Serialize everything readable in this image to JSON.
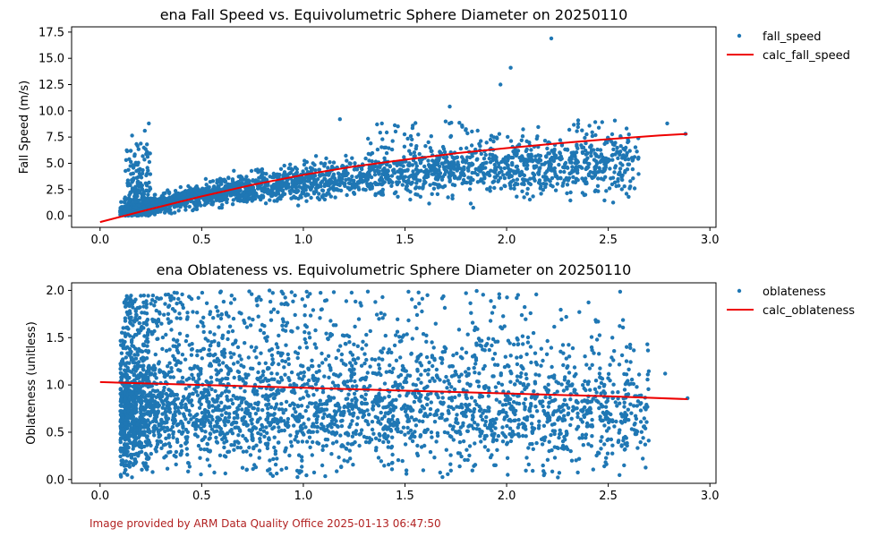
{
  "footer": "Image provided by ARM Data Quality Office 2025-01-13 06:47:50",
  "colors": {
    "points": "#1f77b4",
    "curve": "#ee0000"
  },
  "chart_data": [
    {
      "type": "scatter",
      "title": "ena Fall Speed vs. Equivolumetric Sphere Diameter on 20250110",
      "xlabel": "",
      "ylabel": "Fall Speed (m/s)",
      "xlim": [
        -0.14,
        3.03
      ],
      "ylim": [
        -1.1,
        18.0
      ],
      "xticks": [
        "0.0",
        "0.5",
        "1.0",
        "1.5",
        "2.0",
        "2.5",
        "3.0"
      ],
      "yticks": [
        "0.0",
        "2.5",
        "5.0",
        "7.5",
        "10.0",
        "12.5",
        "15.0",
        "17.5"
      ],
      "legend": {
        "placement": "outside-right",
        "scatter_label": "fall_speed",
        "line_label": "calc_fall_speed"
      },
      "series": [
        {
          "name": "fall_speed",
          "kind": "points",
          "seed": 11,
          "x": [
            2.22,
            2.02,
            1.97,
            1.72,
            1.18,
            0.24,
            0.22,
            2.79,
            2.88
          ],
          "y": [
            16.9,
            14.1,
            12.5,
            10.4,
            9.2,
            8.8,
            8.1,
            8.8,
            7.8
          ]
        },
        {
          "name": "calc_fall_speed",
          "kind": "line",
          "x": [
            0.0,
            0.25,
            0.5,
            0.75,
            1.0,
            1.25,
            1.5,
            1.75,
            2.0,
            2.25,
            2.5,
            2.75,
            2.89
          ],
          "y": [
            -0.6,
            0.65,
            1.85,
            2.95,
            3.9,
            4.7,
            5.35,
            5.95,
            6.45,
            6.9,
            7.3,
            7.65,
            7.8
          ]
        }
      ]
    },
    {
      "type": "scatter",
      "title": "ena Oblateness vs. Equivolumetric Sphere Diameter on 20250110",
      "xlabel": "",
      "ylabel": "Oblateness (unitless)",
      "xlim": [
        -0.14,
        3.03
      ],
      "ylim": [
        -0.04,
        2.08
      ],
      "xticks": [
        "0.0",
        "0.5",
        "1.0",
        "1.5",
        "2.0",
        "2.5",
        "3.0"
      ],
      "yticks": [
        "0.0",
        "0.5",
        "1.0",
        "1.5",
        "2.0"
      ],
      "legend": {
        "placement": "outside-right",
        "scatter_label": "oblateness",
        "line_label": "calc_oblateness"
      },
      "series": [
        {
          "name": "oblateness",
          "kind": "points",
          "seed": 23,
          "x": [
            2.45,
            2.78,
            2.52,
            2.3,
            2.89
          ],
          "y": [
            1.67,
            1.12,
            1.5,
            1.02,
            0.86
          ]
        },
        {
          "name": "calc_oblateness",
          "kind": "line",
          "x": [
            0.0,
            0.5,
            1.0,
            1.5,
            2.0,
            2.5,
            2.89
          ],
          "y": [
            1.03,
            1.0,
            0.97,
            0.94,
            0.91,
            0.88,
            0.85
          ]
        }
      ]
    }
  ]
}
